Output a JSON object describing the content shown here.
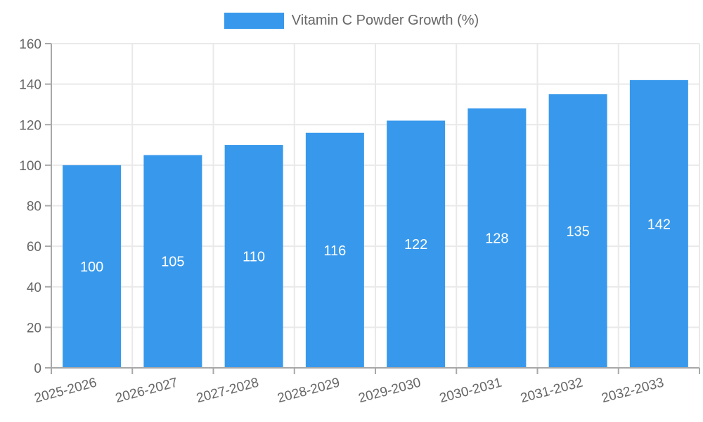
{
  "chart_data": {
    "type": "bar",
    "title": "Vitamin C Powder Growth (%)",
    "categories": [
      "2025-2026",
      "2026-2027",
      "2027-2028",
      "2028-2029",
      "2029-2030",
      "2030-2031",
      "2031-2032",
      "2032-2033"
    ],
    "series": [
      {
        "name": "Vitamin C Powder Growth (%)",
        "values": [
          100,
          105,
          110,
          116,
          122,
          128,
          135,
          142
        ]
      }
    ],
    "xlabel": "",
    "ylabel": "",
    "ylim": [
      0,
      160
    ],
    "ytick_step": 20,
    "yticks": [
      0,
      20,
      40,
      60,
      80,
      100,
      120,
      140,
      160
    ],
    "grid": true,
    "legend_position": "top",
    "value_labels": "centered-inside-bars",
    "colors": {
      "bar": "#3899ec",
      "grid": "#e9e9e9",
      "axis": "#a8a8a8",
      "tick_text": "#666666",
      "legend_text": "#666666",
      "value_label": "#ffffff",
      "background": "#ffffff"
    }
  }
}
